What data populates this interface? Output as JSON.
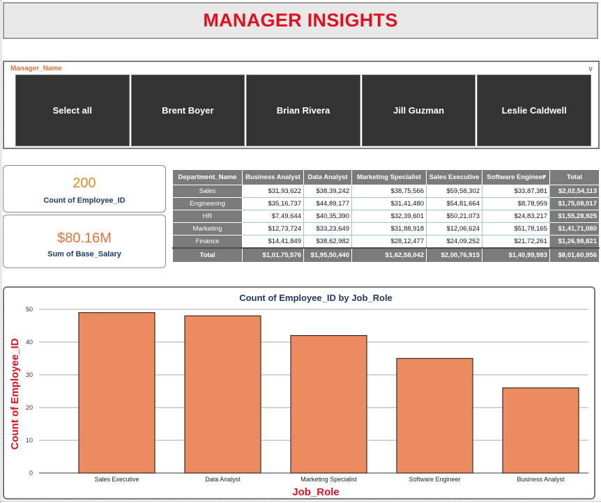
{
  "header": {
    "title": "MANAGER INSIGHTS",
    "title_color": "#e0101f"
  },
  "slicer": {
    "title": "Manager_Name",
    "title_color": "#e8713a",
    "chevron_icon": "chevron-down-icon",
    "options": [
      "Select all",
      "Brent Boyer",
      "Brian Rivera",
      "Jill Guzman",
      "Leslie Caldwell"
    ]
  },
  "kpis": [
    {
      "value": "200",
      "label": "Count of Employee_ID",
      "value_color": "#e58a1f",
      "label_color": "#1f3a68"
    },
    {
      "value": "$80.16M",
      "label": "Sum of Base_Salary",
      "value_color": "#e8713a",
      "label_color": "#1f3a68"
    }
  ],
  "matrix": {
    "headers": [
      "Department_Name",
      "Business Analyst",
      "Data Analyst",
      "Marketing Specialist",
      "Sales Executive",
      "Software Engineer",
      "Total"
    ],
    "sorted_column_icon": "sort-descending-icon",
    "rows": [
      {
        "name": "Sales",
        "values": [
          "$31,93,622",
          "$38,39,242",
          "$38,75,566",
          "$59,58,302",
          "$33,87,381"
        ],
        "total": "$2,02,54,113"
      },
      {
        "name": "Engineering",
        "values": [
          "$35,16,737",
          "$44,89,177",
          "$31,41,480",
          "$54,81,664",
          "$8,78,959"
        ],
        "total": "$1,75,08,017"
      },
      {
        "name": "HR",
        "values": [
          "$7,49,644",
          "$40,35,390",
          "$32,39,601",
          "$50,21,073",
          "$24,83,217"
        ],
        "total": "$1,55,28,925"
      },
      {
        "name": "Marketing",
        "values": [
          "$12,73,724",
          "$33,23,649",
          "$31,88,918",
          "$12,06,624",
          "$51,78,165"
        ],
        "total": "$1,41,71,080"
      },
      {
        "name": "Finance",
        "values": [
          "$14,41,849",
          "$38,62,982",
          "$28,12,477",
          "$24,09,252",
          "$21,72,261"
        ],
        "total": "$1,26,98,821"
      }
    ],
    "total_row": {
      "name": "Total",
      "values": [
        "$1,01,75,576",
        "$1,95,50,440",
        "$1,62,58,042",
        "$2,00,76,915",
        "$1,40,99,983"
      ],
      "total": "$8,01,60,956"
    }
  },
  "chart_data": {
    "type": "bar",
    "title": "Count of Employee_ID by Job_Role",
    "xlabel": "Job_Role",
    "ylabel": "Count of Employee_ID",
    "categories": [
      "Sales Executive",
      "Data Analyst",
      "Marketing Specialist",
      "Software Engineer",
      "Business Analyst"
    ],
    "values": [
      49,
      48,
      42,
      35,
      26
    ],
    "ylim": [
      0,
      50
    ],
    "yticks": [
      0,
      10,
      20,
      30,
      40,
      50
    ],
    "grid": true,
    "bar_color": "#eb8b5f",
    "bar_outline_color": "#3a2a22",
    "title_color": "#1f3a68",
    "axis_label_color": "#e0101f"
  }
}
